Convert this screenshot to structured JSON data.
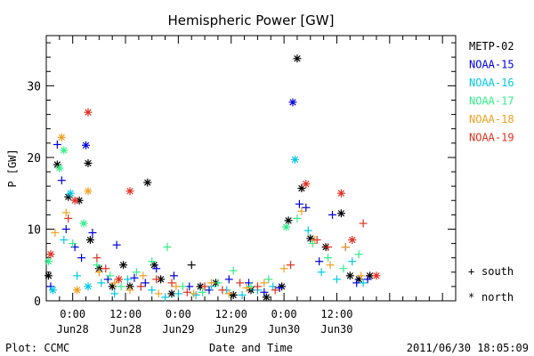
{
  "chart_data": {
    "type": "scatter",
    "title": "Hemispheric Power [GW]",
    "ylabel": "P [GW]",
    "xlabel": "Date and Time",
    "ylim": [
      0,
      37
    ],
    "xlim_hours": [
      -6,
      87
    ],
    "y_ticks": [
      0,
      10,
      20,
      30
    ],
    "x_ticks": [
      {
        "x": 0,
        "labels": [
          "0:00",
          "Jun28"
        ]
      },
      {
        "x": 12,
        "labels": [
          "12:00",
          "Jun28"
        ]
      },
      {
        "x": 24,
        "labels": [
          "0:00",
          "Jun29"
        ]
      },
      {
        "x": 36,
        "labels": [
          "12:00",
          "Jun29"
        ]
      },
      {
        "x": 48,
        "labels": [
          "0:00",
          "Jun30"
        ]
      },
      {
        "x": 60,
        "labels": [
          "12:00",
          "Jun30"
        ]
      }
    ],
    "marker_legend": [
      {
        "symbol": "+",
        "label": "south"
      },
      {
        "symbol": "*",
        "label": "north"
      }
    ],
    "series": [
      {
        "name": "METP-02",
        "color": "#000000",
        "points": [
          [
            -5.5,
            3.5,
            "*"
          ],
          [
            -3.5,
            19.0,
            "*"
          ],
          [
            -1.0,
            14.5,
            "*"
          ],
          [
            1.5,
            14.0,
            "*"
          ],
          [
            3.5,
            19.2,
            "*"
          ],
          [
            4.0,
            8.5,
            "*"
          ],
          [
            6.0,
            4.5,
            "*"
          ],
          [
            9.0,
            2.0,
            "*"
          ],
          [
            11.5,
            5.0,
            "*"
          ],
          [
            13.0,
            2.0,
            "*"
          ],
          [
            17.0,
            16.5,
            "*"
          ],
          [
            18.5,
            5.0,
            "*"
          ],
          [
            20.0,
            3.0,
            "*"
          ],
          [
            22.5,
            1.0,
            "*"
          ],
          [
            27.0,
            5.0,
            "+"
          ],
          [
            29.0,
            2.0,
            "*"
          ],
          [
            32.5,
            2.5,
            "*"
          ],
          [
            36.5,
            0.8,
            "*"
          ],
          [
            40.5,
            1.5,
            "*"
          ],
          [
            44.0,
            0.5,
            "*"
          ],
          [
            47.5,
            2.0,
            "*"
          ],
          [
            49.0,
            11.2,
            "*"
          ],
          [
            51.0,
            33.8,
            "*"
          ],
          [
            52.0,
            15.7,
            "*"
          ],
          [
            54.0,
            8.7,
            "*"
          ],
          [
            57.5,
            7.5,
            "*"
          ],
          [
            61.0,
            12.2,
            "*"
          ],
          [
            63.0,
            3.5,
            "*"
          ],
          [
            65.0,
            3.0,
            "*"
          ],
          [
            67.5,
            3.5,
            "*"
          ]
        ]
      },
      {
        "name": "NOAA-15",
        "color": "#0000dd",
        "points": [
          [
            -5.0,
            2.0,
            "+"
          ],
          [
            -3.5,
            21.8,
            "+"
          ],
          [
            -2.5,
            16.8,
            "+"
          ],
          [
            -1.5,
            10.0,
            "+"
          ],
          [
            0.5,
            7.5,
            "+"
          ],
          [
            2.0,
            6.0,
            "+"
          ],
          [
            3.0,
            21.7,
            "*"
          ],
          [
            4.5,
            9.5,
            "+"
          ],
          [
            8.0,
            3.0,
            "+"
          ],
          [
            10.0,
            7.8,
            "+"
          ],
          [
            14.0,
            3.2,
            "+"
          ],
          [
            16.5,
            2.5,
            "+"
          ],
          [
            19.0,
            4.5,
            "+"
          ],
          [
            23.0,
            3.5,
            "+"
          ],
          [
            26.5,
            2.0,
            "+"
          ],
          [
            31.0,
            1.5,
            "+"
          ],
          [
            35.5,
            3.0,
            "+"
          ],
          [
            40.0,
            2.5,
            "+"
          ],
          [
            43.5,
            1.2,
            "+"
          ],
          [
            47.0,
            1.8,
            "+"
          ],
          [
            50.0,
            27.7,
            "*"
          ],
          [
            51.5,
            13.5,
            "+"
          ],
          [
            53.0,
            13.0,
            "+"
          ],
          [
            56.0,
            5.5,
            "+"
          ],
          [
            59.0,
            12.0,
            "+"
          ],
          [
            62.0,
            7.5,
            "+"
          ],
          [
            64.5,
            2.5,
            "+"
          ],
          [
            67.0,
            3.0,
            "+"
          ]
        ]
      },
      {
        "name": "NOAA-16",
        "color": "#00c8e6",
        "points": [
          [
            -4.5,
            1.5,
            "*"
          ],
          [
            -2.0,
            8.5,
            "+"
          ],
          [
            -0.5,
            15.0,
            "*"
          ],
          [
            1.0,
            3.5,
            "+"
          ],
          [
            3.5,
            2.0,
            "*"
          ],
          [
            6.5,
            2.5,
            "+"
          ],
          [
            9.5,
            1.0,
            "+"
          ],
          [
            12.5,
            3.0,
            "+"
          ],
          [
            15.5,
            2.0,
            "+"
          ],
          [
            18.0,
            1.5,
            "+"
          ],
          [
            21.0,
            0.5,
            "+"
          ],
          [
            24.0,
            1.0,
            "+"
          ],
          [
            28.0,
            0.8,
            "+"
          ],
          [
            31.5,
            2.0,
            "+"
          ],
          [
            35.0,
            1.5,
            "+"
          ],
          [
            38.5,
            0.8,
            "+"
          ],
          [
            42.0,
            1.5,
            "+"
          ],
          [
            45.5,
            2.0,
            "+"
          ],
          [
            50.5,
            19.7,
            "*"
          ],
          [
            53.5,
            9.8,
            "+"
          ],
          [
            56.5,
            4.0,
            "+"
          ],
          [
            60.0,
            3.0,
            "+"
          ],
          [
            63.5,
            5.5,
            "+"
          ],
          [
            66.0,
            2.5,
            "+"
          ]
        ]
      },
      {
        "name": "NOAA-17",
        "color": "#33ee88",
        "points": [
          [
            -5.5,
            5.5,
            "*"
          ],
          [
            -3.0,
            18.5,
            "*"
          ],
          [
            -2.0,
            21.0,
            "*"
          ],
          [
            0.0,
            8.0,
            "+"
          ],
          [
            2.5,
            10.8,
            "*"
          ],
          [
            5.5,
            5.0,
            "+"
          ],
          [
            8.5,
            3.5,
            "+"
          ],
          [
            11.0,
            2.0,
            "+"
          ],
          [
            14.5,
            4.0,
            "+"
          ],
          [
            18.0,
            5.5,
            "+"
          ],
          [
            21.5,
            7.5,
            "+"
          ],
          [
            25.0,
            2.0,
            "+"
          ],
          [
            29.5,
            1.2,
            "+"
          ],
          [
            33.0,
            2.5,
            "+"
          ],
          [
            36.5,
            4.2,
            "+"
          ],
          [
            40.5,
            2.0,
            "+"
          ],
          [
            44.5,
            3.0,
            "+"
          ],
          [
            48.5,
            10.3,
            "*"
          ],
          [
            51.0,
            11.5,
            "+"
          ],
          [
            54.5,
            8.0,
            "+"
          ],
          [
            58.0,
            6.0,
            "+"
          ],
          [
            61.5,
            4.5,
            "+"
          ],
          [
            65.0,
            6.5,
            "+"
          ]
        ]
      },
      {
        "name": "NOAA-18",
        "color": "#f0a020",
        "points": [
          [
            -4.0,
            9.5,
            "+"
          ],
          [
            -2.5,
            22.8,
            "*"
          ],
          [
            -1.5,
            12.3,
            "+"
          ],
          [
            1.0,
            1.5,
            "*"
          ],
          [
            3.5,
            15.3,
            "*"
          ],
          [
            6.0,
            4.0,
            "+"
          ],
          [
            9.5,
            2.5,
            "+"
          ],
          [
            13.0,
            1.5,
            "+"
          ],
          [
            16.0,
            3.5,
            "+"
          ],
          [
            19.5,
            1.0,
            "+"
          ],
          [
            23.5,
            2.0,
            "+"
          ],
          [
            27.5,
            1.0,
            "+"
          ],
          [
            31.5,
            2.5,
            "+"
          ],
          [
            35.5,
            1.0,
            "+"
          ],
          [
            39.5,
            1.8,
            "+"
          ],
          [
            43.5,
            2.5,
            "+"
          ],
          [
            48.0,
            4.5,
            "+"
          ],
          [
            52.0,
            12.5,
            "+"
          ],
          [
            55.0,
            8.5,
            "+"
          ],
          [
            58.5,
            5.0,
            "+"
          ],
          [
            62.0,
            7.5,
            "+"
          ],
          [
            65.5,
            3.5,
            "+"
          ]
        ]
      },
      {
        "name": "NOAA-19",
        "color": "#e03020",
        "points": [
          [
            -5.0,
            6.5,
            "*"
          ],
          [
            -1.0,
            11.5,
            "+"
          ],
          [
            0.5,
            14.0,
            "*"
          ],
          [
            3.5,
            26.3,
            "*"
          ],
          [
            5.5,
            6.0,
            "+"
          ],
          [
            7.5,
            4.5,
            "+"
          ],
          [
            10.5,
            3.0,
            "*"
          ],
          [
            13.0,
            15.3,
            "*"
          ],
          [
            15.5,
            2.0,
            "+"
          ],
          [
            19.0,
            3.0,
            "+"
          ],
          [
            22.5,
            2.5,
            "+"
          ],
          [
            26.0,
            1.2,
            "+"
          ],
          [
            30.0,
            2.0,
            "+"
          ],
          [
            34.0,
            1.5,
            "+"
          ],
          [
            38.0,
            2.5,
            "+"
          ],
          [
            42.0,
            2.0,
            "+"
          ],
          [
            46.0,
            1.5,
            "+"
          ],
          [
            49.5,
            5.0,
            "+"
          ],
          [
            53.0,
            16.3,
            "*"
          ],
          [
            55.5,
            8.5,
            "+"
          ],
          [
            58.0,
            7.5,
            "+"
          ],
          [
            61.0,
            15.0,
            "*"
          ],
          [
            63.5,
            8.5,
            "*"
          ],
          [
            66.0,
            10.8,
            "+"
          ],
          [
            69.0,
            3.5,
            "*"
          ]
        ]
      }
    ]
  },
  "footer": {
    "plot_credit": "Plot: CCMC",
    "timestamp": "2011/06/30 18:05:09"
  }
}
